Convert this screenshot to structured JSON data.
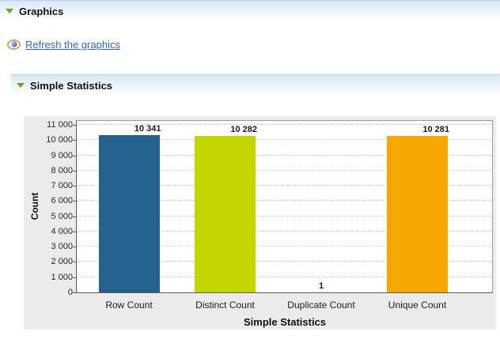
{
  "sections": {
    "graphics": {
      "label": "Graphics",
      "collapse_icon": "triangle-down"
    },
    "refresh": {
      "label": "Refresh the graphics",
      "icon": "eye"
    },
    "stats": {
      "label": "Simple Statistics",
      "collapse_icon": "triangle-down"
    }
  },
  "chart_data": {
    "type": "bar",
    "categories": [
      "Row Count",
      "Distinct Count",
      "Duplicate Count",
      "Unique Count"
    ],
    "values": [
      10341,
      10282,
      1,
      10281
    ],
    "value_labels": [
      "10 341",
      "10 282",
      "1",
      "10 281"
    ],
    "bar_colors": [
      "#26628E",
      "#C3D600",
      "#CCCCCC",
      "#F6A800"
    ],
    "title": "",
    "xlabel": "Simple Statistics",
    "ylabel": "Count",
    "ylim": [
      0,
      11000
    ],
    "ytick_interval": 1000,
    "ytick_labels": [
      "0",
      "1 000",
      "2 000",
      "3 000",
      "4 000",
      "5 000",
      "6 000",
      "7 000",
      "8 000",
      "9 000",
      "10 000",
      "11 000"
    ],
    "grid": "horizontal-dotted",
    "legend": "none",
    "plot_bg": "#FFFFFF",
    "panel_bg": "#EBEBEB"
  },
  "colors": {
    "link": "#3366CC",
    "header_top_border": "#B9D3EA",
    "triangle": "#7F9718",
    "grid_line": "#C9C9C9",
    "axis_dark": "#5A5A5A",
    "axis_light": "#9A9A9A"
  }
}
